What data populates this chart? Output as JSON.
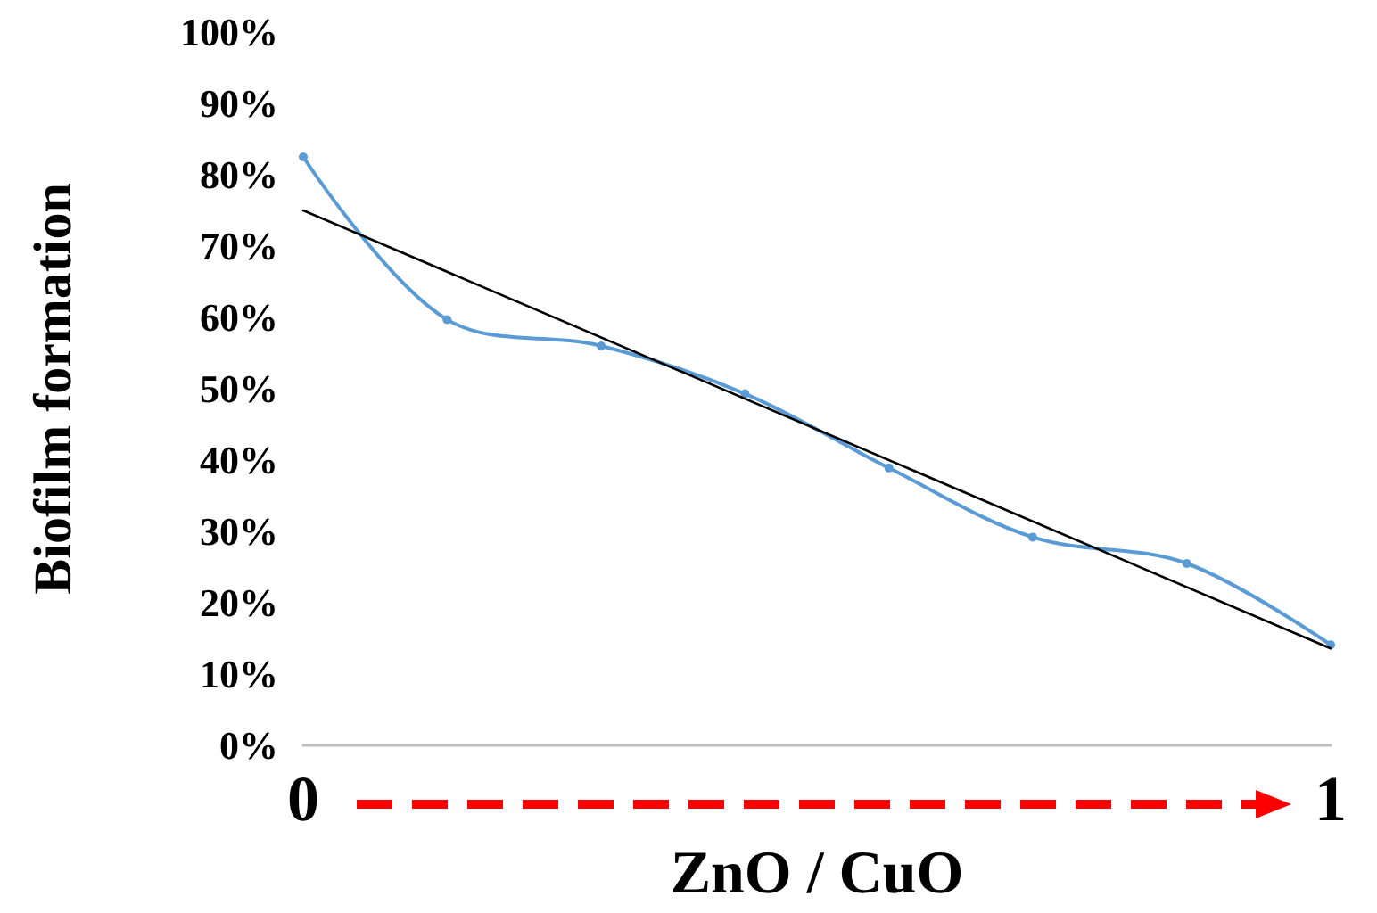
{
  "chart_data": {
    "type": "line",
    "xlabel": "ZnO / CuO",
    "ylabel": "Biofilm formation",
    "xlim": [
      0,
      1
    ],
    "xticks": [
      0,
      1
    ],
    "ylim": [
      0,
      100
    ],
    "yticks": [
      {
        "value": 0,
        "label": "0%"
      },
      {
        "value": 10,
        "label": "10%"
      },
      {
        "value": 20,
        "label": "20%"
      },
      {
        "value": 30,
        "label": "30%"
      },
      {
        "value": 40,
        "label": "40%"
      },
      {
        "value": 50,
        "label": "50%"
      },
      {
        "value": 60,
        "label": "60%"
      },
      {
        "value": 70,
        "label": "70%"
      },
      {
        "value": 80,
        "label": "80%"
      },
      {
        "value": 90,
        "label": "90%"
      },
      {
        "value": 100,
        "label": "100%"
      }
    ],
    "marker": "circle",
    "series": [
      {
        "color": "#5b9bd5",
        "x": [
          0,
          0.14,
          0.29,
          0.43,
          0.57,
          0.71,
          0.86,
          1
        ],
        "values": [
          82.5,
          59.7,
          56,
          49.3,
          38.9,
          29.2,
          25.5,
          14.1
        ]
      },
      {
        "color": "#000000",
        "marker": "none",
        "x": [
          0,
          1
        ],
        "values": [
          75,
          13.6
        ]
      }
    ]
  }
}
